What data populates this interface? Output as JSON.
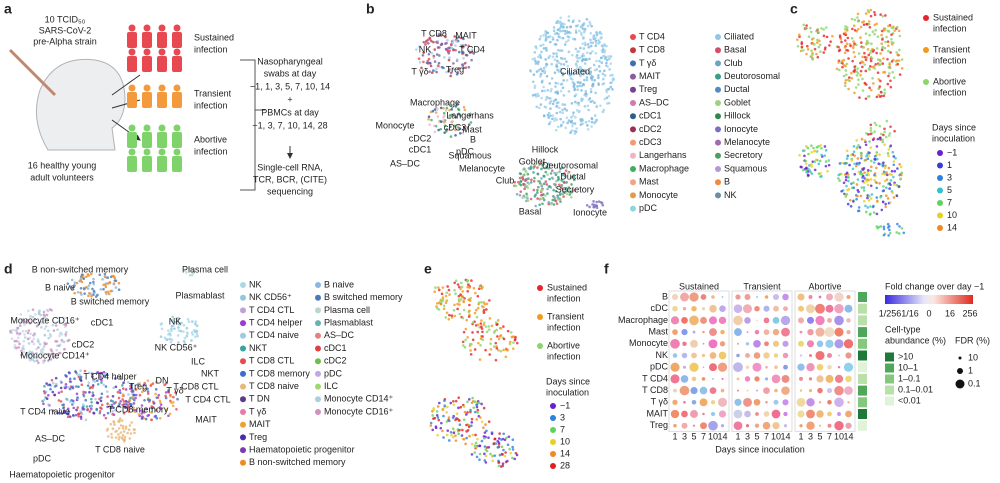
{
  "panel_labels": [
    "a",
    "b",
    "c",
    "d",
    "e",
    "f"
  ],
  "a": {
    "inoculum": [
      "10 TCID₅₀",
      "SARS-CoV-2",
      "pre-Alpha strain"
    ],
    "volunteers": [
      "16 healthy young",
      "adult volunteers"
    ],
    "groups": [
      {
        "lines": [
          "Sustained",
          "infection"
        ],
        "color": "#e8484f"
      },
      {
        "lines": [
          "Transient",
          "infection"
        ],
        "color": "#f39a3c"
      },
      {
        "lines": [
          "Abortive",
          "infection"
        ],
        "color": "#7ed36a"
      }
    ],
    "protocol": [
      "Nasopharyngeal",
      "swabs at day",
      "−1, 1, 3, 5, 7, 10, 14",
      "+",
      "PBMCs at day",
      "−1, 3, 7, 10, 14, 28",
      "Single-cell RNA,",
      "TCR, BCR, (CITE)",
      "sequencing"
    ]
  },
  "b": {
    "cluster_labels": [
      "T CD8",
      "MAIT",
      "NK",
      "T CD4",
      "T γδ",
      "Treg",
      "Ciliated",
      "Macrophage",
      "Langerhans",
      "Monocyte",
      "cDC3",
      "Mast",
      "cDC2",
      "cDC1",
      "B",
      "pDC",
      "AS–DC",
      "Squamous",
      "Hillock",
      "Deutorosomal",
      "Goblet",
      "Melanocyte",
      "Ductal",
      "Club",
      "Secretory",
      "Basal",
      "Ionocyte"
    ],
    "legend": [
      {
        "name": "T CD4",
        "color": "#e8484f"
      },
      {
        "name": "T CD8",
        "color": "#c2383f"
      },
      {
        "name": "T γδ",
        "color": "#3e6fb5"
      },
      {
        "name": "MAIT",
        "color": "#8a5c9e"
      },
      {
        "name": "Treg",
        "color": "#7a3f98"
      },
      {
        "name": "AS–DC",
        "color": "#d07ab0"
      },
      {
        "name": "cDC1",
        "color": "#2f5c8c"
      },
      {
        "name": "cDC2",
        "color": "#9c3050"
      },
      {
        "name": "cDC3",
        "color": "#f29a74"
      },
      {
        "name": "Langerhans",
        "color": "#efb3c4"
      },
      {
        "name": "Macrophage",
        "color": "#3fae5a"
      },
      {
        "name": "Mast",
        "color": "#f4a380"
      },
      {
        "name": "Monocyte",
        "color": "#e59a48"
      },
      {
        "name": "pDC",
        "color": "#8fd7e0"
      },
      {
        "name": "Ciliated",
        "color": "#8ec7e8"
      },
      {
        "name": "Basal",
        "color": "#d64d6a"
      },
      {
        "name": "Club",
        "color": "#6da3c6"
      },
      {
        "name": "Deutorosomal",
        "color": "#3a9c8a"
      },
      {
        "name": "Ductal",
        "color": "#4e8dc4"
      },
      {
        "name": "Goblet",
        "color": "#9fd27e"
      },
      {
        "name": "Hillock",
        "color": "#2f8a4a"
      },
      {
        "name": "Ionocyte",
        "color": "#7b6fc2"
      },
      {
        "name": "Melanocyte",
        "color": "#a06bb0"
      },
      {
        "name": "Secretory",
        "color": "#4a9f64"
      },
      {
        "name": "Squamous",
        "color": "#b498cf"
      },
      {
        "name": "B",
        "color": "#f08a3c"
      },
      {
        "name": "NK",
        "color": "#6b8fa0"
      }
    ]
  },
  "c": {
    "infection": [
      {
        "lines": [
          "Sustained",
          "infection"
        ],
        "color": "#e8242c"
      },
      {
        "lines": [
          "Transient",
          "infection"
        ],
        "color": "#f39a1c"
      },
      {
        "lines": [
          "Abortive",
          "infection"
        ],
        "color": "#8ad66a"
      }
    ],
    "days_title": [
      "Days since",
      "inoculation"
    ],
    "days": [
      {
        "name": "−1",
        "color": "#6a1fd0"
      },
      {
        "name": "1",
        "color": "#3a3ad8"
      },
      {
        "name": "3",
        "color": "#2f7fe0"
      },
      {
        "name": "5",
        "color": "#33c0d0"
      },
      {
        "name": "7",
        "color": "#5fd35f"
      },
      {
        "name": "10",
        "color": "#e8d020"
      },
      {
        "name": "14",
        "color": "#f08a20"
      }
    ]
  },
  "d": {
    "cluster_labels": [
      "B non-switched memory",
      "B naive",
      "B switched memory",
      "Plasma cell",
      "Plasmablast",
      "Monocyte CD16⁺",
      "cDC1",
      "NK",
      "cDC2",
      "NK CD56⁺",
      "ILC",
      "NKT",
      "Monocyte CD14⁺",
      "T CD4 helper",
      "DN",
      "T CD8 CTL",
      "Treg",
      "T γδ",
      "T CD4 CTL",
      "T CD4 naive",
      "T CD8 memory",
      "MAIT",
      "T CD8 naive",
      "AS–DC",
      "pDC",
      "Haematopoietic progenitor"
    ],
    "legend": [
      {
        "name": "NK",
        "color": "#a8d8e8"
      },
      {
        "name": "NK CD56⁺",
        "color": "#8fc8dc"
      },
      {
        "name": "T CD4 CTL",
        "color": "#c4a0d8"
      },
      {
        "name": "T CD4 helper",
        "color": "#9b3ad0"
      },
      {
        "name": "T CD4 naive",
        "color": "#9ec9e6"
      },
      {
        "name": "NKT",
        "color": "#3aa0a0"
      },
      {
        "name": "T CD8 CTL",
        "color": "#e84a4a"
      },
      {
        "name": "T CD8 memory",
        "color": "#3a6fd0"
      },
      {
        "name": "T CD8 naive",
        "color": "#e8b878"
      },
      {
        "name": "T DN",
        "color": "#5a3a8a"
      },
      {
        "name": "T γδ",
        "color": "#e87aa8"
      },
      {
        "name": "MAIT",
        "color": "#f0a030"
      },
      {
        "name": "Treg",
        "color": "#4a2ab0"
      },
      {
        "name": "Haematopoietic progenitor",
        "color": "#7a3ab0"
      },
      {
        "name": "B non-switched memory",
        "color": "#f08a20"
      },
      {
        "name": "B naive",
        "color": "#8ab8e0"
      },
      {
        "name": "B switched memory",
        "color": "#4a7ab8"
      },
      {
        "name": "Plasma cell",
        "color": "#b8d8c8"
      },
      {
        "name": "Plasmablast",
        "color": "#6ab0b0"
      },
      {
        "name": "AS–DC",
        "color": "#e88080"
      },
      {
        "name": "cDC1",
        "color": "#e04040"
      },
      {
        "name": "cDC2",
        "color": "#6ac04a"
      },
      {
        "name": "pDC",
        "color": "#c0a8e0"
      },
      {
        "name": "ILC",
        "color": "#a0d870"
      },
      {
        "name": "Monocyte CD14⁺",
        "color": "#a8d0e0"
      },
      {
        "name": "Monocyte CD16⁺",
        "color": "#d090c0"
      }
    ]
  },
  "e": {
    "infection": [
      {
        "lines": [
          "Sustained",
          "infection"
        ],
        "color": "#e8242c"
      },
      {
        "lines": [
          "Transient",
          "infection"
        ],
        "color": "#f39a1c"
      },
      {
        "lines": [
          "Abortive",
          "infection"
        ],
        "color": "#8ad66a"
      }
    ],
    "days_title": [
      "Days since",
      "inoculation"
    ],
    "days": [
      {
        "name": "−1",
        "color": "#6a1fd0"
      },
      {
        "name": "3",
        "color": "#2f7fe0"
      },
      {
        "name": "7",
        "color": "#5fd35f"
      },
      {
        "name": "10",
        "color": "#e8d020"
      },
      {
        "name": "14",
        "color": "#f08a20"
      },
      {
        "name": "28",
        "color": "#e02020"
      }
    ]
  },
  "f": {
    "groups": [
      "Sustained",
      "Transient",
      "Abortive"
    ],
    "rows": [
      "B",
      "cDC",
      "Macrophage",
      "Mast",
      "Monocyte",
      "NK",
      "pDC",
      "T CD4",
      "T CD8",
      "T γδ",
      "MAIT",
      "Treg"
    ],
    "xticks": [
      "1",
      "3",
      "5",
      "7",
      "10",
      "14"
    ],
    "xlabel": "Days since inoculation",
    "fold_title": "Fold change over day −1",
    "fold_ticks": [
      "1/256",
      "1/16",
      "0",
      "16",
      "256"
    ],
    "abundance_title": [
      "Cell-type",
      "abundance (%)"
    ],
    "abundance": [
      {
        "name": ">10",
        "color": "#1f7a3a"
      },
      {
        "name": "10–1",
        "color": "#4fa85a"
      },
      {
        "name": "1–0.1",
        "color": "#86c77e"
      },
      {
        "name": "0.1–0.01",
        "color": "#b8e0a8"
      },
      {
        "name": "<0.01",
        "color": "#e0f2d8"
      }
    ],
    "fdr_title": "FDR (%)",
    "fdr": [
      "10",
      "1",
      "0.1"
    ]
  }
}
